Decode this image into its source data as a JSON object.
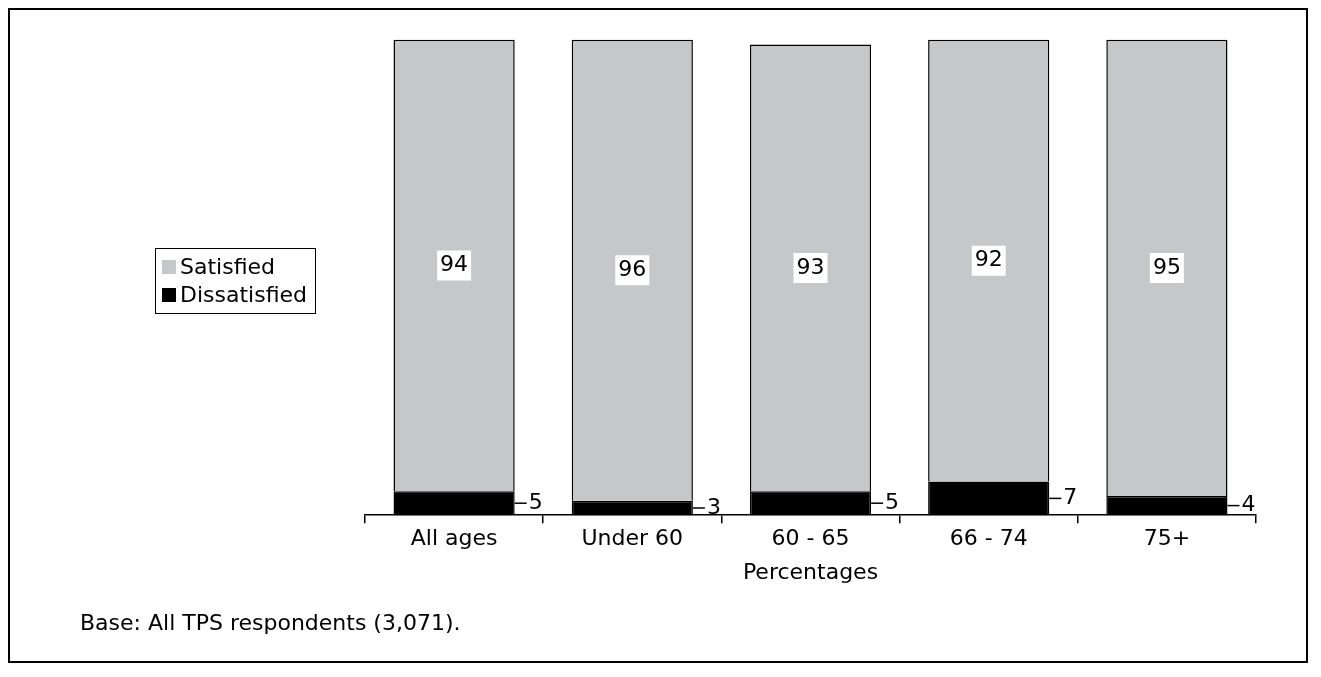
{
  "chart_data": {
    "type": "bar",
    "stacked": true,
    "categories": [
      "All ages",
      "Under 60",
      "60 - 65",
      "66 - 74",
      "75+"
    ],
    "xlabel": "Percentages",
    "annotations": [
      "Base: All TPS respondents (3,071)."
    ],
    "series": [
      {
        "name": "Dissatisfied",
        "color": "#000000",
        "values": [
          5,
          3,
          5,
          7,
          4
        ]
      },
      {
        "name": "Satisfied",
        "color": "#c6c7c8",
        "values": [
          94,
          96,
          93,
          92,
          95
        ]
      }
    ],
    "data_labels": true,
    "legend": "left",
    "grid": false,
    "tick_labels": "x"
  }
}
